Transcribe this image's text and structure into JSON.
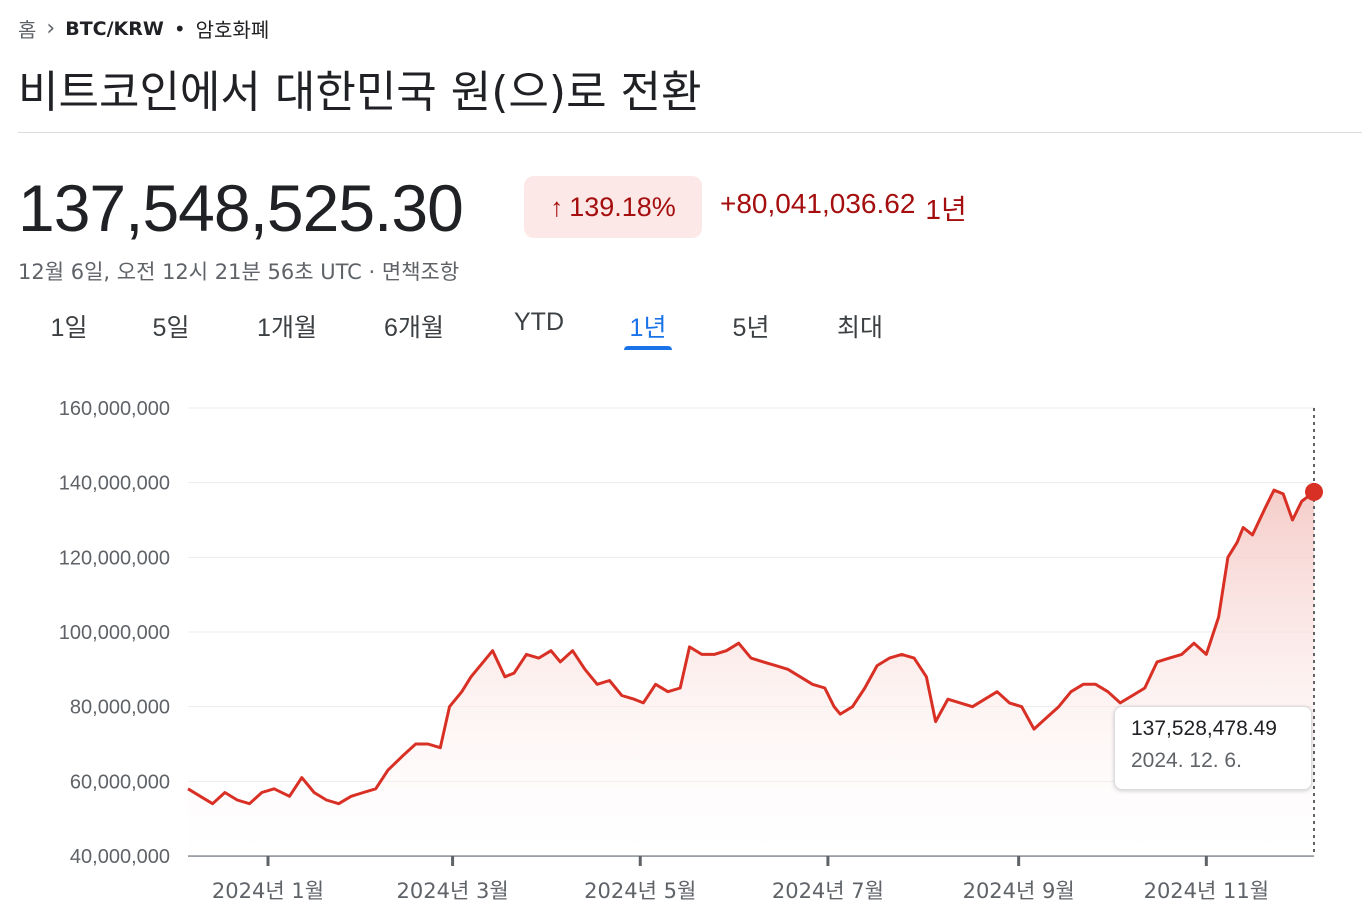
{
  "breadcrumb": {
    "home": "홈",
    "pair": "BTC/KRW",
    "separator": "•",
    "type": "암호화폐"
  },
  "page_title": "비트코인에서 대한민국 원(으)로 전환",
  "quote": {
    "price": "137,548,525.30",
    "change_percent": "139.18%",
    "change_arrow": "↑",
    "change_abs": "+80,041,036.62",
    "change_period": "1년",
    "timestamp": "12월 6일, 오전 12시 21분 56초 UTC · 면책조항"
  },
  "tabs": [
    {
      "label": "1일"
    },
    {
      "label": "5일"
    },
    {
      "label": "1개월"
    },
    {
      "label": "6개월"
    },
    {
      "label": "YTD"
    },
    {
      "label": "1년",
      "active": true
    },
    {
      "label": "5년"
    },
    {
      "label": "최대"
    }
  ],
  "tooltip": {
    "value": "137,528,478.49",
    "date": "2024. 12. 6."
  },
  "colors": {
    "line": "#d93025",
    "fill": "#fce8e6",
    "up": "#a50e0e",
    "accent": "#1a73e8"
  },
  "chart_data": {
    "type": "area",
    "ylim": [
      40000000,
      160000000
    ],
    "y_ticks": [
      160000000,
      140000000,
      120000000,
      100000000,
      80000000,
      60000000,
      40000000
    ],
    "y_tick_labels": [
      "160,000,000",
      "140,000,000",
      "120,000,000",
      "100,000,000",
      "80,000,000",
      "60,000,000",
      "40,000,000"
    ],
    "x_ticks": [
      "2024-01-01",
      "2024-03-01",
      "2024-05-01",
      "2024-07-01",
      "2024-09-01",
      "2024-11-01"
    ],
    "x_tick_labels": [
      "2024년 1월",
      "2024년 3월",
      "2024년 5월",
      "2024년 7월",
      "2024년 9월",
      "2024년 11월"
    ],
    "xlim": [
      "2023-12-06",
      "2024-12-06"
    ],
    "grid": true,
    "series": [
      {
        "x": [
          "2023-12-06",
          "2023-12-10",
          "2023-12-14",
          "2023-12-18",
          "2023-12-22",
          "2023-12-26",
          "2023-12-30",
          "2024-01-03",
          "2024-01-08",
          "2024-01-12",
          "2024-01-16",
          "2024-01-20",
          "2024-01-24",
          "2024-01-28",
          "2024-02-01",
          "2024-02-05",
          "2024-02-09",
          "2024-02-14",
          "2024-02-18",
          "2024-02-22",
          "2024-02-26",
          "2024-02-29",
          "2024-03-04",
          "2024-03-07",
          "2024-03-10",
          "2024-03-14",
          "2024-03-18",
          "2024-03-21",
          "2024-03-25",
          "2024-03-29",
          "2024-04-02",
          "2024-04-05",
          "2024-04-09",
          "2024-04-13",
          "2024-04-17",
          "2024-04-21",
          "2024-04-25",
          "2024-04-29",
          "2024-05-02",
          "2024-05-06",
          "2024-05-10",
          "2024-05-14",
          "2024-05-17",
          "2024-05-21",
          "2024-05-25",
          "2024-05-29",
          "2024-06-02",
          "2024-06-06",
          "2024-06-10",
          "2024-06-14",
          "2024-06-18",
          "2024-06-22",
          "2024-06-26",
          "2024-06-30",
          "2024-07-03",
          "2024-07-05",
          "2024-07-09",
          "2024-07-13",
          "2024-07-17",
          "2024-07-21",
          "2024-07-25",
          "2024-07-29",
          "2024-08-02",
          "2024-08-05",
          "2024-08-09",
          "2024-08-13",
          "2024-08-17",
          "2024-08-21",
          "2024-08-25",
          "2024-08-29",
          "2024-09-02",
          "2024-09-06",
          "2024-09-10",
          "2024-09-14",
          "2024-09-18",
          "2024-09-22",
          "2024-09-26",
          "2024-09-30",
          "2024-10-04",
          "2024-10-08",
          "2024-10-12",
          "2024-10-16",
          "2024-10-20",
          "2024-10-24",
          "2024-10-28",
          "2024-11-01",
          "2024-11-05",
          "2024-11-08",
          "2024-11-11",
          "2024-11-13",
          "2024-11-16",
          "2024-11-20",
          "2024-11-23",
          "2024-11-26",
          "2024-11-29",
          "2024-12-02",
          "2024-12-06"
        ],
        "values": [
          58000000,
          56000000,
          54000000,
          57000000,
          55000000,
          54000000,
          57000000,
          58000000,
          56000000,
          61000000,
          57000000,
          55000000,
          54000000,
          56000000,
          57000000,
          58000000,
          63000000,
          67000000,
          70000000,
          70000000,
          69000000,
          80000000,
          84000000,
          88000000,
          91000000,
          95000000,
          88000000,
          89000000,
          94000000,
          93000000,
          95000000,
          92000000,
          95000000,
          90000000,
          86000000,
          87000000,
          83000000,
          82000000,
          81000000,
          86000000,
          84000000,
          85000000,
          96000000,
          94000000,
          94000000,
          95000000,
          97000000,
          93000000,
          92000000,
          91000000,
          90000000,
          88000000,
          86000000,
          85000000,
          80000000,
          78000000,
          80000000,
          85000000,
          91000000,
          93000000,
          94000000,
          93000000,
          88000000,
          76000000,
          82000000,
          81000000,
          80000000,
          82000000,
          84000000,
          81000000,
          80000000,
          74000000,
          77000000,
          80000000,
          84000000,
          86000000,
          86000000,
          84000000,
          81000000,
          83000000,
          85000000,
          92000000,
          93000000,
          94000000,
          97000000,
          94000000,
          104000000,
          120000000,
          124000000,
          128000000,
          126000000,
          133000000,
          138000000,
          137000000,
          130000000,
          135000000,
          137528478
        ]
      }
    ]
  }
}
